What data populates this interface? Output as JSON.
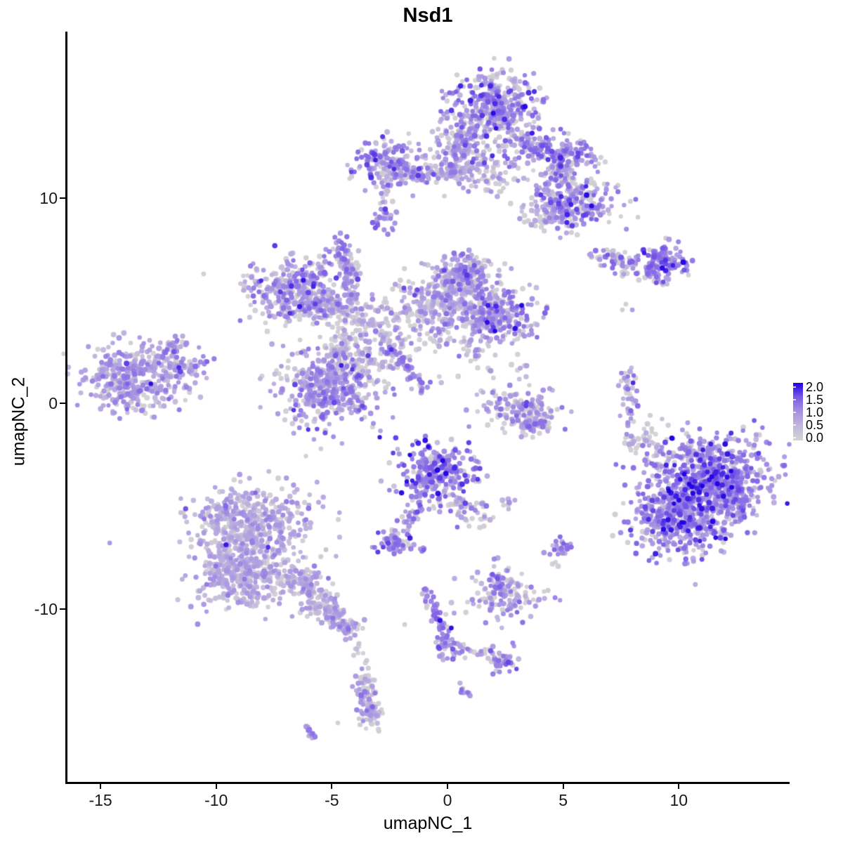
{
  "title": "Nsd1",
  "axes": {
    "x_label": "umapNC_1",
    "y_label": "umapNC_2",
    "x_ticks": [
      "-15",
      "-10",
      "-5",
      "0",
      "5",
      "10"
    ],
    "x_tick_values": [
      -15,
      -10,
      -5,
      0,
      5,
      10
    ],
    "y_ticks": [
      "-10",
      "0",
      "10"
    ],
    "y_tick_values": [
      -10,
      0,
      10
    ]
  },
  "legend": {
    "labels": [
      "2.0",
      "1.5",
      "1.0",
      "0.5",
      "0.0"
    ],
    "values": [
      2.0,
      1.5,
      1.0,
      0.5,
      0.0
    ]
  },
  "chart_data": {
    "type": "scatter",
    "title": "Nsd1",
    "xlabel": "umapNC_1",
    "ylabel": "umapNC_2",
    "xlim": [
      -16.46,
      14.76
    ],
    "ylim": [
      -18.41,
      18.1
    ],
    "x_ticks": [
      -15,
      -10,
      -5,
      0,
      5,
      10
    ],
    "y_ticks": [
      -10,
      0,
      10
    ],
    "grid": false,
    "legend_position": "right",
    "colorbar": {
      "min": 0.0,
      "max": 2.0,
      "tick_values": [
        0.0,
        0.5,
        1.0,
        1.5,
        2.0
      ],
      "low_color": "#d3d3d3",
      "high_color": "#1e00e1"
    },
    "color_stops": [
      "#d3d3d3",
      "#c1b7db",
      "#a692e2",
      "#7c5ce7",
      "#1e00e1"
    ],
    "point_radius_px": 3.5,
    "seed": 20240607,
    "clusters": [
      {
        "kind": "gauss",
        "x": 2.05,
        "y": 14.35,
        "sx": 0.95,
        "sy": 0.92,
        "n": 430,
        "t": 0.48,
        "ts": 0.2,
        "gray": 0.27,
        "dark": 0.012
      },
      {
        "kind": "gauss",
        "x": 0.55,
        "y": 12.63,
        "sx": 0.55,
        "sy": 0.72,
        "n": 140,
        "t": 0.45,
        "ts": 0.18,
        "gray": 0.3
      },
      {
        "kind": "gauss",
        "x": 1.76,
        "y": 11.33,
        "sx": 0.85,
        "sy": 0.58,
        "n": 90,
        "t": 0.35,
        "ts": 0.15,
        "gray": 0.5
      },
      {
        "kind": "strand",
        "x1": 3.19,
        "y1": 12.56,
        "x2": 5.95,
        "y2": 11.98,
        "w": 0.38,
        "n": 170,
        "t": 0.5,
        "ts": 0.18,
        "gray": 0.25
      },
      {
        "kind": "strand",
        "x1": 4.65,
        "y1": 11.54,
        "x2": 5.13,
        "y2": 10.82,
        "w": 0.3,
        "n": 45,
        "t": 0.45,
        "ts": 0.15,
        "gray": 0.3
      },
      {
        "kind": "gauss",
        "x": 5.4,
        "y": 9.79,
        "sx": 0.85,
        "sy": 0.68,
        "n": 230,
        "t": 0.5,
        "ts": 0.18,
        "gray": 0.25,
        "dark": 0.012
      },
      {
        "kind": "gauss",
        "x": 4.31,
        "y": 9.28,
        "sx": 0.6,
        "sy": 0.45,
        "n": 55,
        "t": 0.35,
        "ts": 0.15,
        "gray": 0.4
      },
      {
        "kind": "gauss",
        "x": -2.58,
        "y": 11.71,
        "sx": 0.72,
        "sy": 0.6,
        "n": 170,
        "t": 0.5,
        "ts": 0.18,
        "gray": 0.25
      },
      {
        "kind": "strand",
        "x1": -1.91,
        "y1": 11.26,
        "x2": 0.7,
        "y2": 11.26,
        "w": 0.3,
        "n": 110,
        "t": 0.45,
        "ts": 0.16,
        "gray": 0.3
      },
      {
        "kind": "strand",
        "x1": -2.7,
        "y1": 10.92,
        "x2": -2.64,
        "y2": 9.73,
        "w": 0.12,
        "n": 14,
        "t": 0.3,
        "ts": 0.15,
        "gray": 0.5
      },
      {
        "kind": "gauss",
        "x": -2.73,
        "y": 9.01,
        "sx": 0.3,
        "sy": 0.3,
        "n": 28,
        "t": 0.55,
        "ts": 0.15,
        "gray": 0.15
      },
      {
        "kind": "gauss",
        "x": -4.59,
        "y": 7.5,
        "sx": 0.3,
        "sy": 0.33,
        "n": 36,
        "t": 0.55,
        "ts": 0.15,
        "gray": 0.15
      },
      {
        "kind": "strand",
        "x1": -4.4,
        "y1": 6.82,
        "x2": -4.22,
        "y2": 6.21,
        "w": 0.12,
        "n": 12,
        "t": 0.4,
        "ts": 0.15,
        "gray": 0.3
      },
      {
        "kind": "strand",
        "x1": 6.59,
        "y1": 7.06,
        "x2": 8.2,
        "y2": 6.79,
        "w": 0.3,
        "n": 70,
        "t": 0.45,
        "ts": 0.18,
        "gray": 0.3
      },
      {
        "kind": "gauss",
        "x": 9.35,
        "y": 6.92,
        "sx": 0.55,
        "sy": 0.4,
        "n": 120,
        "t": 0.6,
        "ts": 0.18,
        "gray": 0.15,
        "dark": 0.02
      },
      {
        "kind": "strand",
        "x1": 8.65,
        "y1": 6.31,
        "x2": 9.35,
        "y2": 5.9,
        "w": 0.14,
        "n": 26,
        "t": 0.5,
        "ts": 0.15,
        "gray": 0.2
      },
      {
        "kind": "gauss",
        "x": -6.59,
        "y": 5.45,
        "sx": 1.0,
        "sy": 0.75,
        "n": 360,
        "t": 0.42,
        "ts": 0.18,
        "gray": 0.3,
        "dark": 0.01
      },
      {
        "kind": "strand",
        "x1": -6.19,
        "y1": 5.11,
        "x2": -4.4,
        "y2": 4.36,
        "w": 0.32,
        "n": 100,
        "t": 0.4,
        "ts": 0.16,
        "gray": 0.35
      },
      {
        "kind": "strand",
        "x1": -4.25,
        "y1": 6.92,
        "x2": -4.13,
        "y2": 4.67,
        "w": 0.2,
        "n": 60,
        "t": 0.4,
        "ts": 0.16,
        "gray": 0.35
      },
      {
        "kind": "gauss",
        "x": -3.01,
        "y": 3.3,
        "sx": 1.25,
        "sy": 1.05,
        "n": 230,
        "t": 0.33,
        "ts": 0.14,
        "gray": 0.5
      },
      {
        "kind": "gauss",
        "x": 0.88,
        "y": 6.27,
        "sx": 0.62,
        "sy": 0.5,
        "n": 190,
        "t": 0.45,
        "ts": 0.18,
        "gray": 0.28
      },
      {
        "kind": "gauss",
        "x": -0.27,
        "y": 4.94,
        "sx": 1.0,
        "sy": 0.8,
        "n": 300,
        "t": 0.4,
        "ts": 0.17,
        "gray": 0.35
      },
      {
        "kind": "gauss",
        "x": 2.1,
        "y": 4.36,
        "sx": 0.78,
        "sy": 0.62,
        "n": 270,
        "t": 0.5,
        "ts": 0.18,
        "gray": 0.2,
        "dark": 0.012
      },
      {
        "kind": "gauss",
        "x": 1.2,
        "y": 2.7,
        "sx": 0.55,
        "sy": 0.6,
        "n": 45,
        "t": 0.35,
        "ts": 0.15,
        "gray": 0.45
      },
      {
        "kind": "gauss",
        "x": -5.1,
        "y": 0.74,
        "sx": 1.05,
        "sy": 0.95,
        "n": 430,
        "t": 0.45,
        "ts": 0.18,
        "gray": 0.25,
        "dark": 0.01
      },
      {
        "kind": "strand",
        "x1": -2.46,
        "y1": 2.62,
        "x2": -0.94,
        "y2": 0.74,
        "w": 0.15,
        "n": 42,
        "t": 0.55,
        "ts": 0.12,
        "gray": 0.1
      },
      {
        "kind": "gauss",
        "x": -4.31,
        "y": 2.38,
        "sx": 0.5,
        "sy": 0.6,
        "n": 55,
        "t": 0.35,
        "ts": 0.15,
        "gray": 0.4
      },
      {
        "kind": "gauss",
        "x": 2.92,
        "y": 1.86,
        "sx": 0.35,
        "sy": 0.9,
        "n": 12,
        "t": 0.3,
        "ts": 0.15,
        "gray": 0.5
      },
      {
        "kind": "gauss",
        "x": -13.54,
        "y": 1.25,
        "sx": 1.15,
        "sy": 0.85,
        "n": 400,
        "t": 0.4,
        "ts": 0.16,
        "gray": 0.22,
        "dark": 0.008
      },
      {
        "kind": "strand",
        "x1": -11.69,
        "y1": 1.69,
        "x2": -10.54,
        "y2": 1.93,
        "w": 0.2,
        "n": 40,
        "t": 0.45,
        "ts": 0.15,
        "gray": 0.2
      },
      {
        "kind": "strand",
        "x1": -12.15,
        "y1": 2.65,
        "x2": -11.51,
        "y2": 3.03,
        "w": 0.2,
        "n": 30,
        "t": 0.45,
        "ts": 0.15,
        "gray": 0.2
      },
      {
        "kind": "gauss",
        "x": 3.19,
        "y": -0.29,
        "sx": 0.8,
        "sy": 0.55,
        "n": 150,
        "t": 0.4,
        "ts": 0.17,
        "gray": 0.35
      },
      {
        "kind": "gauss",
        "x": 3.73,
        "y": -1.04,
        "sx": 0.4,
        "sy": 0.28,
        "n": 45,
        "t": 0.45,
        "ts": 0.15,
        "gray": 0.3
      },
      {
        "kind": "strand",
        "x1": 7.77,
        "y1": 1.52,
        "x2": 7.93,
        "y2": -2.07,
        "w": 0.18,
        "n": 60,
        "t": 0.42,
        "ts": 0.17,
        "gray": 0.35
      },
      {
        "kind": "gauss",
        "x": 11.3,
        "y": -3.5,
        "sx": 1.25,
        "sy": 0.95,
        "n": 620,
        "t": 0.55,
        "ts": 0.2,
        "gray": 0.12,
        "dark": 0.015
      },
      {
        "kind": "gauss",
        "x": 9.99,
        "y": -5.59,
        "sx": 1.05,
        "sy": 0.9,
        "n": 460,
        "t": 0.55,
        "ts": 0.2,
        "gray": 0.12,
        "dark": 0.015
      },
      {
        "kind": "gauss",
        "x": 12.39,
        "y": -4.63,
        "sx": 0.55,
        "sy": 0.75,
        "n": 140,
        "t": 0.5,
        "ts": 0.18,
        "gray": 0.15
      },
      {
        "kind": "strand",
        "x1": 8.38,
        "y1": -1.04,
        "x2": 9.35,
        "y2": -2.75,
        "w": 0.35,
        "n": 45,
        "t": 0.25,
        "ts": 0.15,
        "gray": 0.55
      },
      {
        "kind": "gauss",
        "x": -0.52,
        "y": -3.33,
        "sx": 0.85,
        "sy": 0.72,
        "n": 280,
        "t": 0.55,
        "ts": 0.19,
        "gray": 0.12,
        "dark": 0.015
      },
      {
        "kind": "strand",
        "x1": -1.09,
        "y1": -4.39,
        "x2": -2.03,
        "y2": -6.41,
        "w": 0.22,
        "n": 45,
        "t": 0.5,
        "ts": 0.16,
        "gray": 0.2
      },
      {
        "kind": "gauss",
        "x": -2.31,
        "y": -6.85,
        "sx": 0.42,
        "sy": 0.33,
        "n": 65,
        "t": 0.5,
        "ts": 0.16,
        "gray": 0.15
      },
      {
        "kind": "strand",
        "x1": 0.24,
        "y1": -4.46,
        "x2": 1.4,
        "y2": -5.59,
        "w": 0.3,
        "n": 50,
        "t": 0.35,
        "ts": 0.15,
        "gray": 0.45
      },
      {
        "kind": "gauss",
        "x": -1.12,
        "y": -7.09,
        "sx": 0.12,
        "sy": 0.1,
        "n": 6,
        "t": 0.5,
        "ts": 0.1,
        "gray": 0.1
      },
      {
        "kind": "gauss",
        "x": 2.76,
        "y": -4.91,
        "sx": 0.3,
        "sy": 0.3,
        "n": 7,
        "t": 0.4,
        "ts": 0.15,
        "gray": 0.4
      },
      {
        "kind": "gauss",
        "x": -8.41,
        "y": -5.83,
        "sx": 1.3,
        "sy": 0.92,
        "n": 450,
        "t": 0.34,
        "ts": 0.13,
        "gray": 0.17,
        "dark": 0.006
      },
      {
        "kind": "gauss",
        "x": -8.99,
        "y": -8.29,
        "sx": 0.95,
        "sy": 0.85,
        "n": 360,
        "t": 0.33,
        "ts": 0.13,
        "gray": 0.17
      },
      {
        "kind": "strand",
        "x1": -6.89,
        "y1": -8.32,
        "x2": -4.77,
        "y2": -10.38,
        "w": 0.6,
        "w2": 0.25,
        "n": 210,
        "t": 0.34,
        "ts": 0.13,
        "gray": 0.25
      },
      {
        "kind": "gauss",
        "x": -4.34,
        "y": -10.82,
        "sx": 0.3,
        "sy": 0.25,
        "n": 40,
        "t": 0.38,
        "ts": 0.13,
        "gray": 0.2
      },
      {
        "kind": "strand",
        "x1": -4.16,
        "y1": -11.13,
        "x2": -3.64,
        "y2": -12.67,
        "w": 0.15,
        "n": 14,
        "t": 0.3,
        "ts": 0.15,
        "gray": 0.4
      },
      {
        "kind": "gauss",
        "x": 4.95,
        "y": -6.99,
        "sx": 0.27,
        "sy": 0.24,
        "n": 26,
        "t": 0.5,
        "ts": 0.15,
        "gray": 0.15
      },
      {
        "kind": "gauss",
        "x": 4.68,
        "y": -7.91,
        "sx": 0.15,
        "sy": 0.12,
        "n": 3,
        "t": 0.05,
        "ts": 0.03,
        "gray": 0.6
      },
      {
        "kind": "gauss",
        "x": 2.4,
        "y": -9.25,
        "sx": 0.8,
        "sy": 0.6,
        "n": 140,
        "t": 0.42,
        "ts": 0.17,
        "gray": 0.3
      },
      {
        "kind": "gauss",
        "x": 2.1,
        "y": -8.67,
        "sx": 0.2,
        "sy": 0.2,
        "n": 12,
        "t": 0.6,
        "ts": 0.15,
        "gray": 0.1
      },
      {
        "kind": "strand",
        "x1": -0.91,
        "y1": -9.05,
        "x2": -0.05,
        "y2": -11.6,
        "w": 0.18,
        "n": 55,
        "t": 0.5,
        "ts": 0.18,
        "gray": 0.25,
        "dark": 0.06
      },
      {
        "kind": "gauss",
        "x": -0.21,
        "y": -11.85,
        "sx": 0.26,
        "sy": 0.26,
        "n": 30,
        "t": 0.45,
        "ts": 0.15,
        "gray": 0.3
      },
      {
        "kind": "strand",
        "x1": 0.3,
        "y1": -11.75,
        "x2": 1.91,
        "y2": -12.26,
        "w": 0.14,
        "n": 26,
        "t": 0.4,
        "ts": 0.15,
        "gray": 0.3
      },
      {
        "kind": "gauss",
        "x": 2.35,
        "y": -12.55,
        "sx": 0.38,
        "sy": 0.33,
        "n": 45,
        "t": 0.5,
        "ts": 0.16,
        "gray": 0.25
      },
      {
        "kind": "gauss",
        "x": -3.49,
        "y": -13.93,
        "sx": 0.25,
        "sy": 0.45,
        "n": 50,
        "t": 0.35,
        "ts": 0.14,
        "gray": 0.3
      },
      {
        "kind": "gauss",
        "x": -3.34,
        "y": -15.06,
        "sx": 0.3,
        "sy": 0.42,
        "n": 55,
        "t": 0.38,
        "ts": 0.14,
        "gray": 0.25
      },
      {
        "kind": "strand",
        "x1": -6.1,
        "y1": -15.85,
        "x2": -5.71,
        "y2": -16.22,
        "w": 0.1,
        "n": 12,
        "t": 0.5,
        "ts": 0.12,
        "gray": 0.1
      },
      {
        "kind": "strand",
        "x1": 0.55,
        "y1": -13.86,
        "x2": 0.91,
        "y2": -14.17,
        "w": 0.1,
        "n": 10,
        "t": 0.45,
        "ts": 0.12,
        "gray": 0.15
      }
    ],
    "singles": [
      [
        -10.54,
        6.31,
        0.04
      ],
      [
        7.71,
        4.84,
        0.05
      ],
      [
        7.99,
        4.56,
        0.45
      ],
      [
        7.56,
        4.56,
        0.05
      ],
      [
        8.14,
        -2.41,
        0.05
      ],
      [
        -1.85,
        -10.75,
        0.05
      ],
      [
        -3.7,
        -12.91,
        0.5
      ],
      [
        -4.74,
        -15.54,
        0.05
      ]
    ]
  }
}
